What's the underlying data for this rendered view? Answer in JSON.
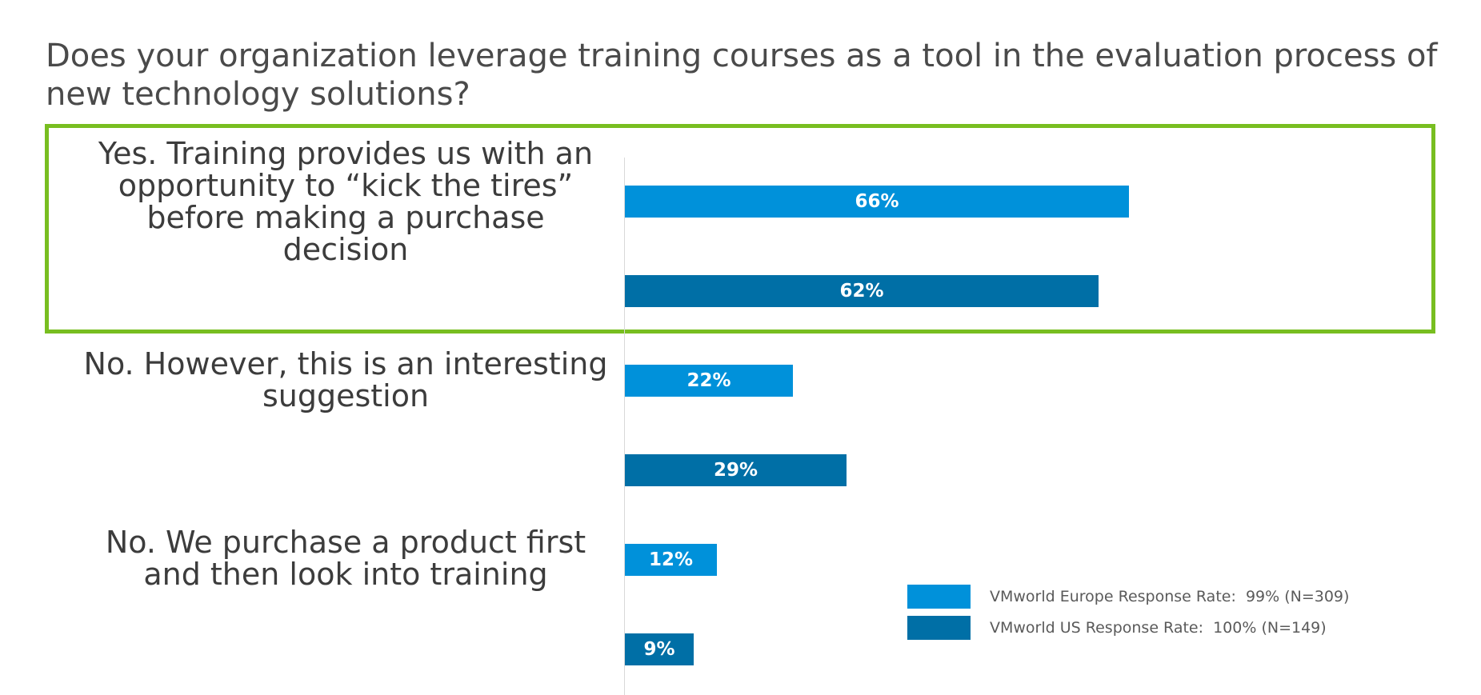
{
  "chart_data": {
    "type": "bar",
    "orientation": "horizontal",
    "title": "Does your organization leverage training courses as a tool in the evaluation process of new technology solutions?",
    "categories": [
      "Yes. Training provides us with an\nopportunity to “kick the tires”\nbefore making a purchase\ndecision",
      "No. However, this is an interesting\nsuggestion",
      "No. We purchase a product first\nand then look into training"
    ],
    "series": [
      {
        "name": "VMworld Europe Response Rate:  99% (N=309)",
        "color": "#0091da",
        "values": [
          66,
          22,
          12
        ],
        "labels": [
          "66%",
          "22%",
          "12%"
        ]
      },
      {
        "name": "VMworld US Response Rate:  100% (N=149)",
        "color": "#006fa6",
        "values": [
          62,
          29,
          9
        ],
        "labels": [
          "62%",
          "29%",
          "9%"
        ]
      }
    ],
    "xlim": [
      0,
      100
    ],
    "highlighted_category": 0,
    "highlight_color": "#78be20",
    "legend_position": "bottom-right"
  }
}
